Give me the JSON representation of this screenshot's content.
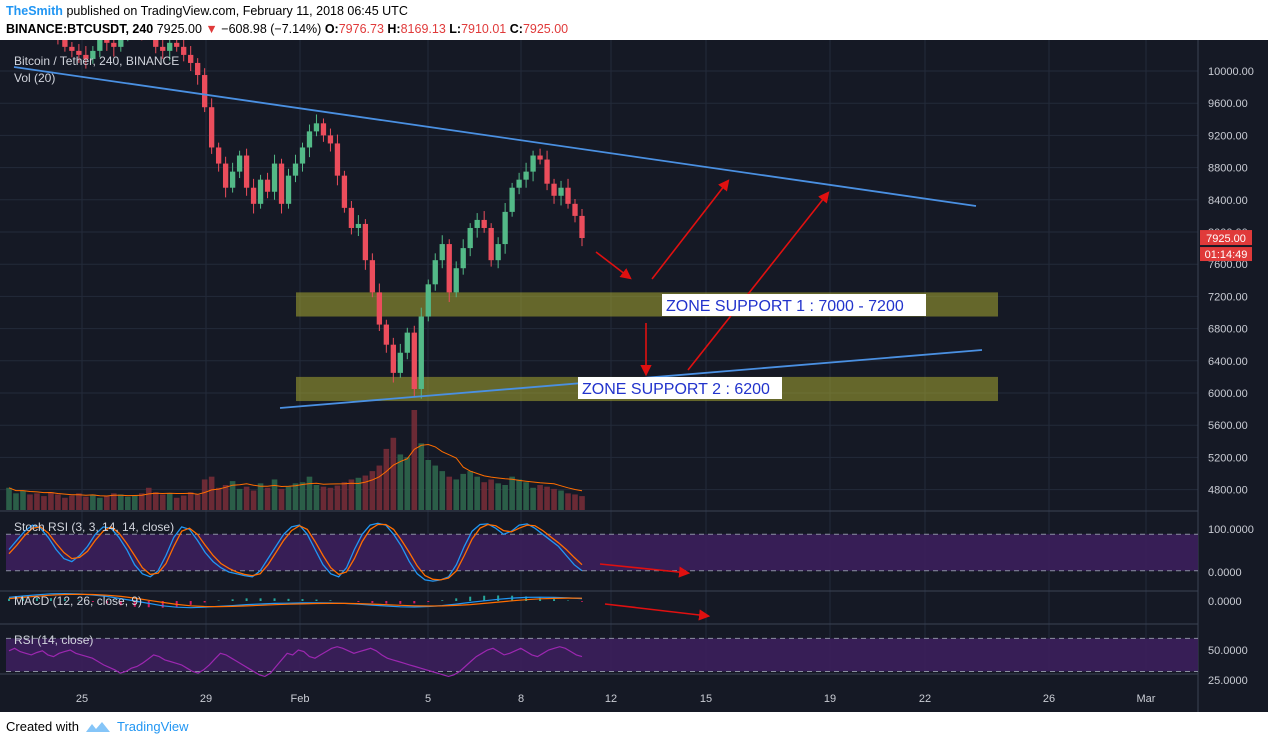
{
  "header": {
    "author": "TheSmith",
    "published_text": "published on TradingView.com, February 11, 2018 06:45 UTC",
    "symbol": "BINANCE:BTCUSDT, 240",
    "last_price": "7925.00",
    "change_arrow": "▼",
    "change": "−608.98 (−7.14%)",
    "o_label": "O:",
    "o_value": "7976.73",
    "h_label": "H:",
    "h_value": "8169.13",
    "l_label": "L:",
    "l_value": "7910.01",
    "c_label": "C:",
    "c_value": "7925.00"
  },
  "footer": {
    "created_with": "Created with",
    "brand": "TradingView"
  },
  "colors": {
    "background": "#151925",
    "up": "#53b987",
    "down": "#eb4d5c",
    "trend": "#4a90e2",
    "zone": "#a8a832",
    "arrow": "#e01010",
    "stoch_k": "#2196f3",
    "stoch_d": "#ff6d00",
    "rsi": "#9c27b0",
    "band": "#3b1f5c"
  },
  "chart_data": [
    {
      "type": "candlestick",
      "title": "Bitcoin / Tether, 240, BINANCE",
      "volume_label": "Vol (20)",
      "x_tick_labels": [
        "25",
        "29",
        "Feb",
        "5",
        "8",
        "12",
        "15",
        "19",
        "22",
        "26",
        "Mar"
      ],
      "y_tick_labels": [
        "10000.00",
        "9600.00",
        "9200.00",
        "8800.00",
        "8400.00",
        "8000.00",
        "7600.00",
        "7200.00",
        "6800.00",
        "6400.00",
        "6000.00",
        "5600.00",
        "5200.00",
        "4800.00"
      ],
      "ylim": [
        4600,
        10400
      ],
      "price_badge": "7925.00",
      "countdown_badge": "01:14:49",
      "candles_closes": [
        10850,
        10900,
        10950,
        10800,
        10700,
        10600,
        10500,
        10450,
        10300,
        10250,
        10200,
        10150,
        10250,
        10400,
        10350,
        10300,
        10450,
        10550,
        10600,
        10500,
        10450,
        10300,
        10250,
        10350,
        10300,
        10200,
        10100,
        9950,
        9550,
        9050,
        8850,
        8550,
        8750,
        8950,
        8550,
        8350,
        8650,
        8500,
        8850,
        8350,
        8700,
        8850,
        9050,
        9250,
        9350,
        9200,
        9100,
        8700,
        8300,
        8050,
        8100,
        7650,
        7250,
        6850,
        6600,
        6250,
        6500,
        6750,
        6050,
        6950,
        7350,
        7650,
        7850,
        7250,
        7550,
        7800,
        8050,
        8150,
        8050,
        7650,
        7850,
        8250,
        8550,
        8650,
        8750,
        8950,
        8900,
        8600,
        8450,
        8550,
        8350,
        8200,
        7925
      ],
      "volume": [
        40,
        30,
        35,
        28,
        30,
        25,
        32,
        28,
        22,
        26,
        30,
        24,
        28,
        22,
        25,
        30,
        28,
        24,
        26,
        30,
        40,
        32,
        28,
        30,
        22,
        26,
        32,
        28,
        55,
        60,
        40,
        45,
        52,
        38,
        42,
        35,
        48,
        40,
        55,
        38,
        42,
        48,
        50,
        60,
        45,
        42,
        40,
        44,
        50,
        55,
        58,
        62,
        70,
        80,
        110,
        130,
        100,
        95,
        180,
        120,
        90,
        80,
        70,
        60,
        55,
        65,
        70,
        60,
        50,
        55,
        48,
        45,
        60,
        55,
        50,
        40,
        45,
        42,
        38,
        35,
        30,
        28,
        25
      ],
      "annotations": [
        {
          "text": "ZONE SUPPORT 1 : 7000 - 7200",
          "y_range": [
            6950,
            7250
          ]
        },
        {
          "text": "ZONE SUPPORT 2 : 6200",
          "y_range": [
            5900,
            6200
          ]
        }
      ]
    },
    {
      "type": "line",
      "title": "Stoch RSI (3, 3, 14, 14, close)",
      "y_tick_labels": [
        "100.0000",
        "0.0000"
      ],
      "ylim": [
        -10,
        110
      ],
      "bands": [
        20,
        80
      ],
      "series": [
        {
          "values": [
            55,
            70,
            85,
            95,
            90,
            75,
            55,
            40,
            35,
            45,
            60,
            80,
            92,
            90,
            75,
            55,
            30,
            15,
            10,
            20,
            45,
            75,
            92,
            88,
            70,
            50,
            35,
            25,
            18,
            15,
            12,
            10,
            20,
            40,
            60,
            80,
            92,
            95,
            80,
            55,
            30,
            15,
            10,
            25,
            55,
            80,
            95,
            98,
            95,
            80,
            60,
            35,
            15,
            5,
            3,
            5,
            10,
            30,
            60,
            85,
            96,
            97,
            90,
            80,
            85,
            95,
            97,
            90,
            80,
            70,
            60,
            45,
            30,
            20
          ]
        },
        {
          "values": [
            48,
            62,
            78,
            90,
            92,
            82,
            65,
            50,
            40,
            42,
            52,
            70,
            85,
            92,
            82,
            65,
            45,
            25,
            14,
            16,
            32,
            60,
            85,
            90,
            80,
            62,
            45,
            32,
            24,
            18,
            14,
            12,
            15,
            30,
            50,
            70,
            86,
            94,
            88,
            68,
            45,
            25,
            14,
            18,
            40,
            68,
            88,
            96,
            96,
            88,
            70,
            50,
            28,
            12,
            6,
            5,
            8,
            20,
            45,
            72,
            90,
            96,
            94,
            86,
            84,
            90,
            95,
            94,
            86,
            76,
            66,
            55,
            42,
            30
          ]
        }
      ]
    },
    {
      "type": "line",
      "title": "MACD (12, 26, close, 9)",
      "y_tick_labels": [
        "0.0000"
      ],
      "series": [
        {
          "values": [
            300,
            420,
            520,
            600,
            620,
            580,
            500,
            380,
            200,
            0,
            -200,
            -400,
            -520,
            -560,
            -520,
            -450,
            -380,
            -300,
            -250,
            -200,
            -180,
            -160,
            -150,
            -170,
            -200,
            -260,
            -340,
            -420,
            -480,
            -500,
            -460,
            -380,
            -260,
            -120,
            20,
            140,
            240,
            300,
            320,
            300,
            260,
            200
          ]
        },
        {
          "values": [
            200,
            300,
            400,
            480,
            540,
            560,
            540,
            480,
            380,
            240,
            60,
            -120,
            -280,
            -400,
            -460,
            -470,
            -450,
            -410,
            -360,
            -310,
            -270,
            -240,
            -210,
            -200,
            -200,
            -220,
            -260,
            -310,
            -360,
            -400,
            -420,
            -410,
            -370,
            -300,
            -200,
            -90,
            20,
            110,
            180,
            220,
            240,
            230
          ]
        }
      ]
    },
    {
      "type": "line",
      "title": "RSI (14, close)",
      "y_tick_labels": [
        "50.0000",
        "25.0000"
      ],
      "ylim": [
        10,
        85
      ],
      "bands": [
        30,
        70
      ],
      "series": [
        {
          "values": [
            55,
            58,
            54,
            52,
            50,
            53,
            55,
            50,
            48,
            52,
            54,
            56,
            52,
            50,
            48,
            46,
            42,
            38,
            35,
            32,
            28,
            30,
            34,
            36,
            40,
            45,
            50,
            48,
            44,
            42,
            40,
            38,
            34,
            30,
            28,
            32,
            38,
            45,
            52,
            50,
            46,
            42,
            38,
            34,
            30,
            26,
            24,
            28,
            36,
            44,
            52,
            50,
            56,
            54,
            48,
            46,
            50,
            54,
            58,
            60,
            58,
            55,
            52,
            54,
            56,
            58,
            55,
            50,
            46,
            44,
            42,
            40,
            38,
            36,
            34,
            32,
            30,
            28,
            26,
            24,
            26,
            30,
            36,
            42,
            48,
            52,
            56,
            58,
            54,
            50,
            52,
            55,
            58,
            54,
            50,
            48,
            52,
            56,
            58,
            60,
            58,
            54,
            50,
            48
          ]
        }
      ]
    }
  ]
}
